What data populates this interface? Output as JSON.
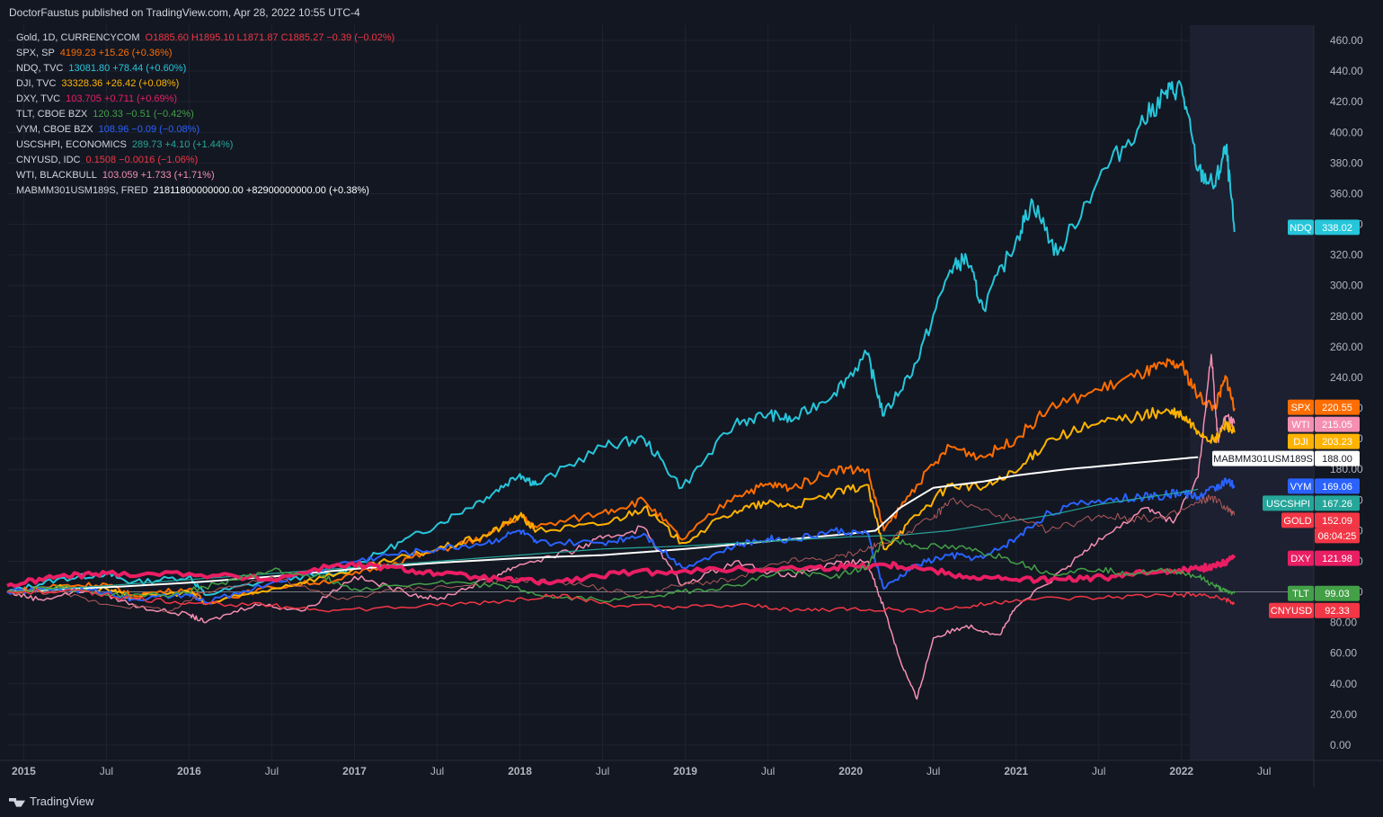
{
  "header": {
    "published": "DoctorFaustus published on TradingView.com, Apr 28, 2022 10:55 UTC-4"
  },
  "footer": {
    "brand": "TradingView"
  },
  "countdown": "06:04:25",
  "legend": [
    {
      "name": "Gold, 1D, CURRENCYCOM",
      "value": "O1885.60  H1895.10  L1871.87  C1885.27  −0.39 (−0.02%)",
      "color": "#f23645"
    },
    {
      "name": "SPX, SP",
      "value": "4199.23  +15.26 (+0.36%)",
      "color": "#ff6d00"
    },
    {
      "name": "NDQ, TVC",
      "value": "13081.80  +78.44 (+0.60%)",
      "color": "#26c6da"
    },
    {
      "name": "DJI, TVC",
      "value": "33328.36  +26.42 (+0.08%)",
      "color": "#ffb300"
    },
    {
      "name": "DXY, TVC",
      "value": "103.705  +0.711 (+0.69%)",
      "color": "#e91e63"
    },
    {
      "name": "TLT, CBOE BZX",
      "value": "120.33  −0.51 (−0.42%)",
      "color": "#43a047"
    },
    {
      "name": "VYM, CBOE BZX",
      "value": "108.96  −0.09 (−0.08%)",
      "color": "#2962ff"
    },
    {
      "name": "USCSHPI, ECONOMICS",
      "value": "289.73  +4.10 (+1.44%)",
      "color": "#26a69a"
    },
    {
      "name": "CNYUSD, IDC",
      "value": "0.1508  −0.0016 (−1.06%)",
      "color": "#f23645"
    },
    {
      "name": "WTI, BLACKBULL",
      "value": "103.059  +1.733 (+1.71%)",
      "color": "#f48fb1"
    },
    {
      "name": "MABMM301USM189S, FRED",
      "value": "21811800000000.00  +82900000000.00 (+0.38%)",
      "color": "#ffffff"
    }
  ],
  "chart_data": {
    "type": "line",
    "ylim": [
      -10,
      470
    ],
    "y_ticks": [
      0,
      20,
      40,
      60,
      80,
      100,
      120,
      140,
      160,
      180,
      200,
      220,
      240,
      260,
      280,
      300,
      320,
      340,
      360,
      380,
      400,
      420,
      440,
      460
    ],
    "y_tick_labels": [
      "0.00",
      "20.00",
      "40.00",
      "60.00",
      "80.00",
      "100.00",
      "120.00",
      "140.00",
      "160.00",
      "180.00",
      "200.00",
      "220.00",
      "240.00",
      "260.00",
      "280.00",
      "300.00",
      "320.00",
      "340.00",
      "360.00",
      "380.00",
      "400.00",
      "420.00",
      "440.00",
      "460.00"
    ],
    "x_ticks": [
      {
        "x": 2015.0,
        "label": "2015"
      },
      {
        "x": 2015.5,
        "label": "Jul"
      },
      {
        "x": 2016.0,
        "label": "2016"
      },
      {
        "x": 2016.5,
        "label": "Jul"
      },
      {
        "x": 2017.0,
        "label": "2017"
      },
      {
        "x": 2017.5,
        "label": "Jul"
      },
      {
        "x": 2018.0,
        "label": "2018"
      },
      {
        "x": 2018.5,
        "label": "Jul"
      },
      {
        "x": 2019.0,
        "label": "2019"
      },
      {
        "x": 2019.5,
        "label": "Jul"
      },
      {
        "x": 2020.0,
        "label": "2020"
      },
      {
        "x": 2020.5,
        "label": "Jul"
      },
      {
        "x": 2021.0,
        "label": "2021"
      },
      {
        "x": 2021.5,
        "label": "Jul"
      },
      {
        "x": 2022.0,
        "label": "2022"
      },
      {
        "x": 2022.5,
        "label": "Jul"
      }
    ],
    "xlim": [
      2014.9,
      2022.8
    ],
    "baseline": 100,
    "series": [
      {
        "name": "NDQ",
        "color": "#26c6da",
        "width": 2,
        "last": 338.02,
        "label_color": "#26c6da",
        "x": [
          2014.9,
          2015.2,
          2015.5,
          2015.65,
          2016.0,
          2016.1,
          2016.5,
          2016.9,
          2017.2,
          2017.5,
          2017.8,
          2018.0,
          2018.1,
          2018.5,
          2018.75,
          2018.98,
          2019.3,
          2019.5,
          2019.65,
          2019.9,
          2020.1,
          2020.2,
          2020.4,
          2020.6,
          2020.7,
          2020.8,
          2021.0,
          2021.1,
          2021.25,
          2021.5,
          2021.75,
          2021.9,
          2022.0,
          2022.1,
          2022.2,
          2022.27,
          2022.32
        ],
        "y": [
          100,
          108,
          112,
          106,
          110,
          98,
          108,
          112,
          128,
          144,
          162,
          177,
          170,
          195,
          200,
          168,
          210,
          216,
          212,
          230,
          255,
          215,
          250,
          310,
          318,
          285,
          330,
          355,
          320,
          370,
          405,
          425,
          430,
          375,
          365,
          390,
          335
        ]
      },
      {
        "name": "SPX",
        "color": "#ff6d00",
        "width": 2,
        "last": 220.55,
        "label_color": "#ff6d00",
        "x": [
          2014.9,
          2015.2,
          2015.5,
          2015.65,
          2016.0,
          2016.1,
          2016.5,
          2016.9,
          2017.2,
          2017.5,
          2017.8,
          2018.0,
          2018.1,
          2018.5,
          2018.75,
          2018.98,
          2019.3,
          2019.5,
          2019.65,
          2019.9,
          2020.1,
          2020.2,
          2020.4,
          2020.6,
          2020.8,
          2021.0,
          2021.2,
          2021.5,
          2021.75,
          2021.9,
          2022.0,
          2022.1,
          2022.2,
          2022.27,
          2022.32
        ],
        "y": [
          100,
          104,
          105,
          98,
          102,
          93,
          103,
          108,
          118,
          127,
          136,
          150,
          142,
          152,
          160,
          134,
          163,
          170,
          168,
          180,
          180,
          140,
          170,
          195,
          188,
          200,
          220,
          232,
          242,
          248,
          248,
          228,
          220,
          240,
          220
        ]
      },
      {
        "name": "WTI",
        "color": "#f48fb1",
        "width": 1.5,
        "last": 215.05,
        "label_color": "#f48fb1",
        "x": [
          2014.9,
          2015.1,
          2015.4,
          2015.7,
          2016.0,
          2016.1,
          2016.4,
          2016.7,
          2017.0,
          2017.3,
          2017.5,
          2017.8,
          2018.0,
          2018.3,
          2018.5,
          2018.75,
          2018.98,
          2019.3,
          2019.6,
          2019.9,
          2020.1,
          2020.2,
          2020.3,
          2020.4,
          2020.5,
          2020.7,
          2020.9,
          2021.0,
          2021.3,
          2021.5,
          2021.8,
          2021.95,
          2022.1,
          2022.18,
          2022.22,
          2022.27,
          2022.32
        ],
        "y": [
          100,
          95,
          102,
          90,
          85,
          80,
          92,
          88,
          110,
          100,
          95,
          108,
          118,
          126,
          135,
          142,
          104,
          120,
          110,
          118,
          120,
          90,
          55,
          30,
          70,
          78,
          72,
          90,
          115,
          135,
          155,
          145,
          175,
          255,
          200,
          215,
          210
        ]
      },
      {
        "name": "DJI",
        "color": "#ffb300",
        "width": 2,
        "last": 203.23,
        "label_color": "#ffb300",
        "x": [
          2014.9,
          2015.2,
          2015.5,
          2015.65,
          2016.0,
          2016.1,
          2016.5,
          2016.9,
          2017.2,
          2017.5,
          2017.8,
          2018.0,
          2018.1,
          2018.5,
          2018.75,
          2018.98,
          2019.3,
          2019.5,
          2019.65,
          2019.9,
          2020.1,
          2020.2,
          2020.4,
          2020.6,
          2020.8,
          2021.0,
          2021.2,
          2021.5,
          2021.75,
          2021.9,
          2022.0,
          2022.1,
          2022.2,
          2022.27,
          2022.32
        ],
        "y": [
          100,
          103,
          102,
          96,
          100,
          92,
          102,
          112,
          120,
          128,
          137,
          150,
          140,
          144,
          155,
          132,
          153,
          158,
          156,
          164,
          170,
          128,
          150,
          170,
          168,
          178,
          200,
          210,
          215,
          218,
          215,
          205,
          198,
          210,
          204
        ]
      },
      {
        "name": "MABMM301USM189S",
        "color": "#ffffff",
        "width": 2,
        "last": 188.0,
        "label_color": "#ffffff",
        "x": [
          2014.9,
          2015.5,
          2016.0,
          2016.5,
          2017.0,
          2017.5,
          2018.0,
          2018.5,
          2019.0,
          2019.5,
          2020.0,
          2020.15,
          2020.3,
          2020.5,
          2020.8,
          2021.0,
          2021.3,
          2021.6,
          2021.9,
          2022.0,
          2022.1
        ],
        "y": [
          100,
          103,
          106,
          110,
          115,
          119,
          122,
          124,
          128,
          133,
          138,
          140,
          155,
          168,
          172,
          176,
          180,
          183,
          186,
          187,
          188
        ]
      },
      {
        "name": "VYM",
        "color": "#2962ff",
        "width": 2,
        "last": 169.06,
        "label_color": "#2962ff",
        "x": [
          2014.9,
          2015.2,
          2015.5,
          2015.65,
          2016.0,
          2016.1,
          2016.5,
          2016.9,
          2017.2,
          2017.5,
          2017.8,
          2018.0,
          2018.1,
          2018.5,
          2018.75,
          2018.98,
          2019.3,
          2019.5,
          2019.65,
          2019.9,
          2020.1,
          2020.2,
          2020.4,
          2020.6,
          2020.8,
          2021.0,
          2021.2,
          2021.5,
          2021.75,
          2021.9,
          2022.0,
          2022.1,
          2022.2,
          2022.27,
          2022.32
        ],
        "y": [
          100,
          102,
          100,
          95,
          98,
          93,
          106,
          118,
          124,
          128,
          132,
          140,
          132,
          132,
          138,
          116,
          130,
          135,
          134,
          140,
          138,
          102,
          118,
          124,
          122,
          135,
          152,
          160,
          162,
          163,
          165,
          162,
          168,
          172,
          169
        ]
      },
      {
        "name": "USCSHPI",
        "color": "#26a69a",
        "width": 1.2,
        "last": 167.26,
        "label_color": "#26a69a",
        "x": [
          2014.9,
          2015.5,
          2016.0,
          2016.5,
          2017.0,
          2017.5,
          2018.0,
          2018.5,
          2019.0,
          2019.5,
          2020.0,
          2020.3,
          2020.6,
          2020.9,
          2021.2,
          2021.5,
          2021.8,
          2022.0,
          2022.1
        ],
        "y": [
          100,
          104,
          108,
          112,
          116,
          120,
          124,
          128,
          130,
          133,
          136,
          137,
          140,
          145,
          150,
          157,
          162,
          165,
          167
        ]
      },
      {
        "name": "GOLD",
        "color": "#b05a5a",
        "width": 1,
        "last": 152.09,
        "label_color": "#f23645",
        "x": [
          2014.9,
          2015.2,
          2015.5,
          2015.9,
          2016.1,
          2016.5,
          2016.9,
          2017.3,
          2017.7,
          2018.0,
          2018.3,
          2018.7,
          2019.0,
          2019.3,
          2019.6,
          2019.9,
          2020.1,
          2020.2,
          2020.5,
          2020.6,
          2020.9,
          2021.2,
          2021.5,
          2021.7,
          2021.9,
          2022.1,
          2022.18,
          2022.27,
          2022.32
        ],
        "y": [
          100,
          100,
          92,
          88,
          100,
          110,
          95,
          102,
          104,
          108,
          106,
          98,
          105,
          108,
          120,
          122,
          128,
          132,
          148,
          160,
          150,
          140,
          150,
          148,
          148,
          158,
          162,
          155,
          150
        ]
      },
      {
        "name": "DXY",
        "color": "#e91e63",
        "width": 4,
        "last": 121.98,
        "label_color": "#e91e63",
        "x": [
          2014.9,
          2015.2,
          2015.5,
          2016.0,
          2016.5,
          2016.9,
          2017.2,
          2017.5,
          2017.9,
          2018.2,
          2018.6,
          2019.0,
          2019.5,
          2019.9,
          2020.2,
          2020.4,
          2020.7,
          2021.0,
          2021.3,
          2021.6,
          2021.9,
          2022.1,
          2022.2,
          2022.32
        ],
        "y": [
          104,
          110,
          112,
          112,
          108,
          118,
          116,
          112,
          108,
          106,
          112,
          114,
          115,
          116,
          118,
          116,
          110,
          108,
          108,
          110,
          114,
          115,
          117,
          122
        ]
      },
      {
        "name": "TLT",
        "color": "#43a047",
        "width": 1.5,
        "last": 99.03,
        "label_color": "#43a047",
        "x": [
          2014.9,
          2015.2,
          2015.5,
          2015.9,
          2016.2,
          2016.5,
          2016.8,
          2017.0,
          2017.5,
          2017.9,
          2018.2,
          2018.6,
          2018.98,
          2019.3,
          2019.6,
          2019.9,
          2020.1,
          2020.2,
          2020.4,
          2020.7,
          2020.95,
          2021.2,
          2021.5,
          2021.7,
          2021.95,
          2022.1,
          2022.2,
          2022.27,
          2022.32
        ],
        "y": [
          100,
          104,
          98,
          98,
          106,
          114,
          110,
          102,
          106,
          104,
          96,
          95,
          100,
          104,
          114,
          110,
          116,
          135,
          130,
          128,
          122,
          112,
          115,
          112,
          114,
          110,
          104,
          100,
          99
        ]
      },
      {
        "name": "CNYUSD",
        "color": "#f23645",
        "width": 1.5,
        "last": 92.33,
        "label_color": "#f23645",
        "x": [
          2014.9,
          2015.4,
          2015.6,
          2016.0,
          2016.5,
          2016.9,
          2017.5,
          2017.9,
          2018.2,
          2018.6,
          2018.98,
          2019.4,
          2019.7,
          2020.0,
          2020.4,
          2020.7,
          2021.0,
          2021.5,
          2021.9,
          2022.1,
          2022.27,
          2022.32
        ],
        "y": [
          100,
          100,
          96,
          93,
          91,
          88,
          91,
          94,
          98,
          91,
          90,
          91,
          88,
          89,
          88,
          90,
          95,
          96,
          98,
          98,
          95,
          92
        ]
      }
    ]
  }
}
